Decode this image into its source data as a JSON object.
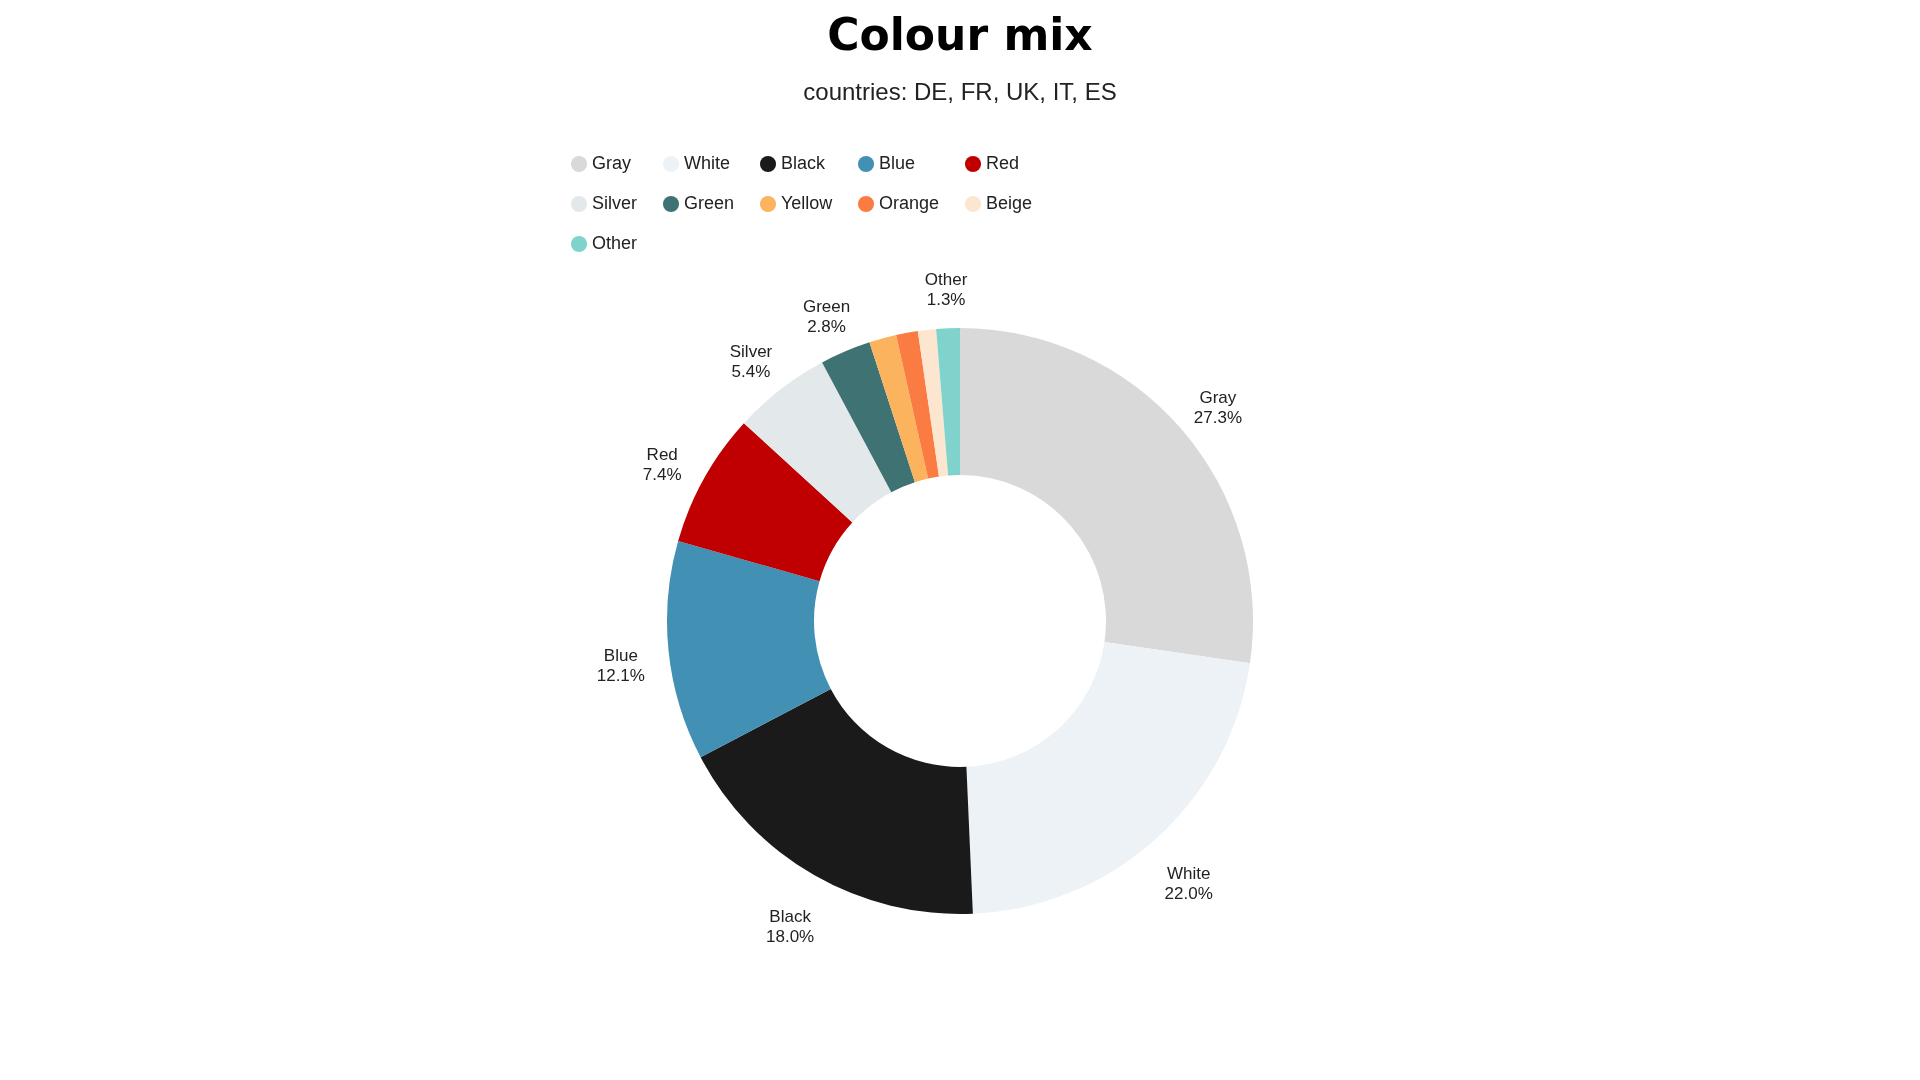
{
  "chart_data": {
    "type": "donut",
    "title": "Colour mix",
    "subtitle": "countries: DE, FR, UK, IT, ES",
    "categories": [
      "Gray",
      "White",
      "Black",
      "Blue",
      "Red",
      "Silver",
      "Green",
      "Yellow",
      "Orange",
      "Beige",
      "Other"
    ],
    "values": [
      27.3,
      22.0,
      18.0,
      12.1,
      7.4,
      5.4,
      2.8,
      1.5,
      1.2,
      1.0,
      1.3
    ],
    "value_labels": [
      "27.3%",
      "22.0%",
      "18.0%",
      "12.1%",
      "7.4%",
      "5.4%",
      "2.8%",
      null,
      null,
      null,
      "1.3%"
    ],
    "colors": [
      "#d9d9d9",
      "#ecf2f6",
      "#1a1a1a",
      "#4291b5",
      "#c00000",
      "#e3e8ea",
      "#3f7272",
      "#fbb35e",
      "#fb7c43",
      "#fde6cf",
      "#7fd3cc"
    ],
    "legend": "top"
  }
}
